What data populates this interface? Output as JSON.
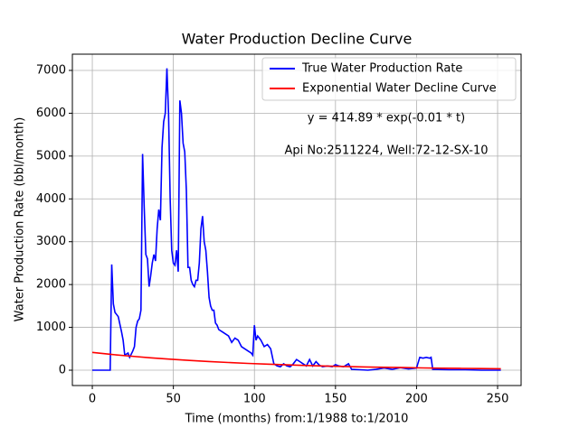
{
  "chart_data": {
    "type": "line",
    "title": "Water Production Decline Curve",
    "xlabel": "Time (months) from:1/1988 to:1/2010",
    "ylabel": "Water Production Rate (bbl/month)",
    "annotations": [
      "y = 414.89 * exp(-0.01 * t)",
      "Api No:2511224, Well:72-12-SX-10"
    ],
    "xlim": [
      -12.3,
      264.5
    ],
    "ylim": [
      -358,
      7379
    ],
    "xticks": [
      0,
      50,
      100,
      150,
      200,
      250
    ],
    "yticks": [
      0,
      1000,
      2000,
      3000,
      4000,
      5000,
      6000,
      7000
    ],
    "grid": true,
    "legend": "upper right",
    "series": [
      {
        "name": "True Water Production Rate",
        "color": "#0000ff",
        "x": [
          0,
          11,
          12,
          13,
          14,
          16,
          18,
          19,
          20,
          22,
          23,
          25,
          26,
          27,
          28,
          29,
          30,
          31,
          32,
          33,
          34,
          35,
          36,
          37,
          38,
          39,
          40,
          41,
          42,
          43,
          44,
          45,
          46,
          47,
          48,
          49,
          50,
          51,
          52,
          53,
          54,
          55,
          56,
          57,
          58,
          59,
          60,
          61,
          62,
          63,
          64,
          65,
          66,
          67,
          68,
          69,
          70,
          71,
          72,
          73,
          74,
          75,
          76,
          77,
          78,
          80,
          82,
          84,
          86,
          88,
          90,
          92,
          94,
          96,
          98,
          99,
          100,
          101,
          102,
          103,
          104,
          106,
          108,
          110,
          112,
          114,
          116,
          118,
          120,
          122,
          124,
          126,
          128,
          130,
          132,
          134,
          136,
          138,
          140,
          142,
          145,
          148,
          150,
          152,
          155,
          158,
          160,
          165,
          170,
          175,
          180,
          185,
          190,
          195,
          200,
          202,
          204,
          206,
          208,
          209,
          210,
          220,
          230,
          240,
          252
        ],
        "values": [
          0,
          0,
          2470,
          1550,
          1350,
          1250,
          900,
          700,
          350,
          400,
          300,
          450,
          550,
          1000,
          1150,
          1200,
          1400,
          5050,
          3800,
          2700,
          2600,
          1950,
          2200,
          2500,
          2700,
          2550,
          3300,
          3750,
          3500,
          5200,
          5800,
          6000,
          7050,
          6000,
          4000,
          2800,
          2500,
          2450,
          2800,
          2300,
          6300,
          6000,
          5300,
          5100,
          4200,
          2400,
          2400,
          2100,
          2000,
          1950,
          2100,
          2100,
          2500,
          3300,
          3600,
          3000,
          2800,
          2300,
          1700,
          1500,
          1400,
          1400,
          1100,
          1050,
          950,
          900,
          850,
          800,
          650,
          750,
          700,
          550,
          500,
          450,
          400,
          350,
          1050,
          700,
          800,
          750,
          700,
          550,
          600,
          500,
          150,
          100,
          80,
          150,
          100,
          80,
          150,
          250,
          200,
          150,
          100,
          250,
          100,
          200,
          120,
          80,
          100,
          80,
          130,
          100,
          80,
          150,
          20,
          10,
          0,
          20,
          50,
          20,
          60,
          30,
          50,
          300,
          280,
          300,
          280,
          300,
          20,
          10,
          10,
          0,
          0
        ]
      },
      {
        "name": "Exponential Water Decline Curve",
        "color": "#ff0000",
        "x": [
          0,
          12,
          24,
          36,
          48,
          60,
          72,
          84,
          96,
          108,
          120,
          132,
          144,
          156,
          168,
          180,
          192,
          204,
          216,
          228,
          240,
          252
        ],
        "values": [
          414.9,
          368.0,
          326.4,
          289.5,
          256.7,
          227.7,
          202.0,
          179.1,
          158.9,
          140.9,
          125.0,
          110.8,
          98.3,
          87.2,
          77.3,
          68.6,
          60.8,
          53.9,
          47.8,
          42.4,
          37.6,
          33.4
        ]
      }
    ]
  }
}
